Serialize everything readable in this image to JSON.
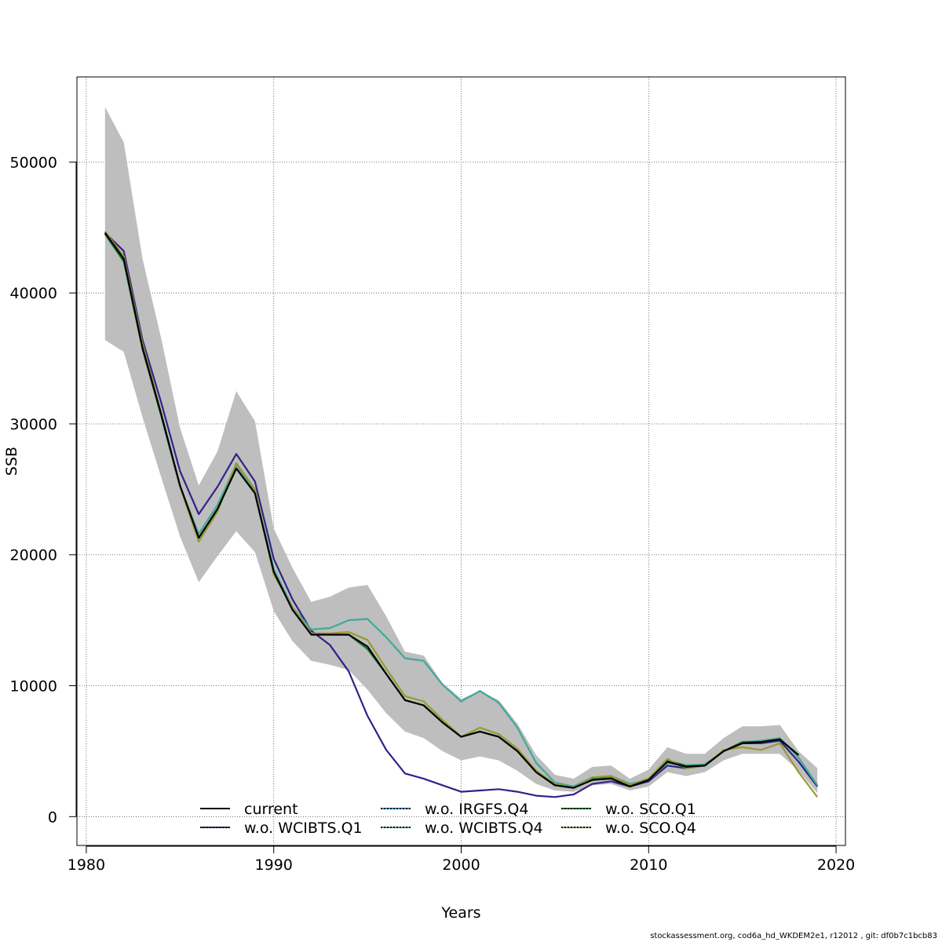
{
  "chart_data": {
    "type": "line",
    "title": "",
    "xlabel": "Years",
    "ylabel": "SSB",
    "xlim": [
      1979.5,
      2020.5
    ],
    "ylim": [
      -2200,
      56500
    ],
    "xticks": [
      1980,
      1990,
      2000,
      2010,
      2020
    ],
    "yticks": [
      0,
      10000,
      20000,
      30000,
      40000,
      50000
    ],
    "grid": true,
    "legend_position": "bottom-center",
    "x": [
      1981,
      1982,
      1983,
      1984,
      1985,
      1986,
      1987,
      1988,
      1989,
      1990,
      1991,
      1992,
      1993,
      1994,
      1995,
      1996,
      1997,
      1998,
      1999,
      2000,
      2001,
      2002,
      2003,
      2004,
      2005,
      2006,
      2007,
      2008,
      2009,
      2010,
      2011,
      2012,
      2013,
      2014,
      2015,
      2016,
      2017,
      2018,
      2019
    ],
    "band": {
      "color": "#bebebe",
      "upper": [
        54200,
        51500,
        42600,
        36500,
        29700,
        25300,
        27900,
        32500,
        30200,
        22000,
        19000,
        16400,
        16800,
        17500,
        17700,
        15300,
        12600,
        12300,
        10200,
        9000,
        9600,
        8900,
        7100,
        4700,
        3200,
        2900,
        3800,
        3900,
        2900,
        3600,
        5300,
        4800,
        4800,
        6000,
        6900,
        6900,
        7000,
        5000,
        3700
      ],
      "lower": [
        36400,
        35500,
        30500,
        25900,
        21400,
        17900,
        19900,
        21800,
        20200,
        15700,
        13400,
        11900,
        11600,
        11200,
        9700,
        7900,
        6500,
        6000,
        5000,
        4300,
        4600,
        4300,
        3500,
        2500,
        2000,
        1900,
        2400,
        2500,
        2000,
        2300,
        3400,
        3100,
        3400,
        4300,
        4800,
        4800,
        4800,
        3500,
        1800
      ]
    },
    "series": [
      {
        "name": "current",
        "color": "#000000",
        "dash": "",
        "values": [
          44600,
          42600,
          35800,
          30700,
          25300,
          21300,
          23500,
          26600,
          24700,
          18700,
          15800,
          13900,
          13900,
          13900,
          13000,
          10900,
          8900,
          8500,
          7200,
          6100,
          6500,
          6100,
          5000,
          3400,
          2400,
          2200,
          2800,
          2900,
          2300,
          2800,
          4200,
          3800,
          3900,
          5000,
          5600,
          5700,
          5900,
          4700,
          null
        ]
      },
      {
        "name": "w.o. WCIBTS.Q1",
        "color": "#332288",
        "dash": "",
        "values": [
          44600,
          43200,
          36400,
          31600,
          26400,
          23100,
          25200,
          27700,
          25600,
          19700,
          16600,
          14200,
          13100,
          11100,
          7700,
          5100,
          3300,
          2900,
          2400,
          1900,
          2000,
          2100,
          1900,
          1600,
          1500,
          1700,
          2500,
          2700,
          2300,
          2700,
          3900,
          3700,
          3900,
          5000,
          5600,
          5600,
          5800,
          4200,
          2300
        ]
      },
      {
        "name": "w.o. IRGFS.Q4",
        "color": "#3b8fd0",
        "dash": "4,3",
        "values": [
          44500,
          42500,
          35800,
          30600,
          25200,
          21600,
          23800,
          26900,
          24900,
          18900,
          16000,
          14300,
          14400,
          15000,
          15100,
          13700,
          12100,
          11900,
          10100,
          8800,
          9600,
          8700,
          6800,
          4100,
          2600,
          2300,
          3000,
          3100,
          2500,
          2800,
          4100,
          3900,
          4000,
          5000,
          5700,
          5800,
          6000,
          4500,
          2400
        ]
      },
      {
        "name": "w.o. WCIBTS.Q4",
        "color": "#44aa99",
        "dash": "",
        "values": [
          44500,
          42500,
          35800,
          30600,
          25200,
          21600,
          23800,
          26900,
          24900,
          18900,
          16000,
          14300,
          14400,
          15000,
          15100,
          13700,
          12100,
          11900,
          10100,
          8800,
          9600,
          8700,
          6800,
          4100,
          2600,
          2300,
          3000,
          3100,
          2500,
          2800,
          4100,
          3900,
          4000,
          5000,
          5700,
          5800,
          6000,
          4500,
          2400
        ]
      },
      {
        "name": "w.o. SCO.Q1",
        "color": "#117733",
        "dash": "",
        "values": [
          44500,
          42400,
          35700,
          30600,
          25200,
          21300,
          23500,
          26600,
          24700,
          18700,
          15900,
          14000,
          13900,
          13900,
          12800,
          10900,
          8900,
          8500,
          7200,
          6100,
          6500,
          6100,
          5000,
          3400,
          2400,
          2200,
          2900,
          3000,
          2400,
          2900,
          4300,
          3900,
          3900,
          5000,
          5700,
          5700,
          5900,
          4700,
          null
        ]
      },
      {
        "name": "w.o. SCO.Q4",
        "color": "#999933",
        "dash": "",
        "values": [
          44700,
          42800,
          36100,
          30800,
          25200,
          21000,
          23300,
          27000,
          25000,
          18500,
          16000,
          14000,
          14000,
          14100,
          13500,
          11300,
          9200,
          8800,
          7400,
          6100,
          6800,
          6300,
          5200,
          3500,
          2500,
          2200,
          3000,
          3100,
          2400,
          2900,
          4400,
          3700,
          3900,
          5100,
          5300,
          5100,
          5600,
          3400,
          1500
        ]
      }
    ],
    "legend": [
      {
        "label": "current",
        "color": "#000000"
      },
      {
        "label": "w.o. WCIBTS.Q1",
        "color": "#332288"
      },
      {
        "label": "w.o. IRGFS.Q4",
        "color": "#3b8fd0"
      },
      {
        "label": "w.o. WCIBTS.Q4",
        "color": "#44aa99"
      },
      {
        "label": "w.o. SCO.Q1",
        "color": "#117733"
      },
      {
        "label": "w.o. SCO.Q4",
        "color": "#999933"
      }
    ]
  },
  "footer": "stockassessment.org, cod6a_hd_WKDEM2e1, r12012 , git: df0b7c1bcb83"
}
